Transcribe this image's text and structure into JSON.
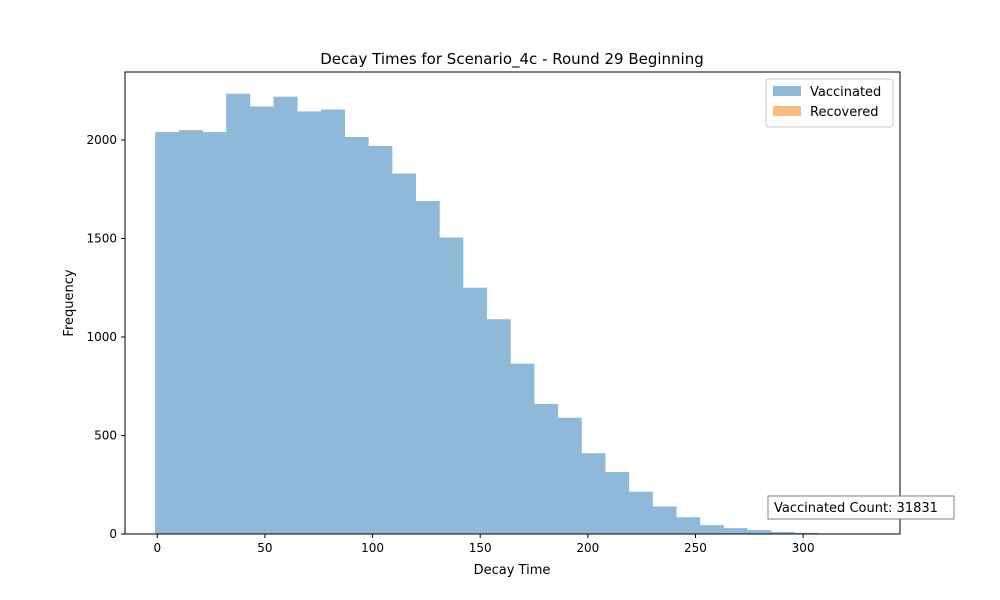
{
  "chart_data": {
    "type": "bar",
    "title": "Decay Times for Scenario_4c - Round 29 Beginning",
    "xlabel": "Decay Time",
    "ylabel": "Frequency",
    "xlim": [
      -15,
      345
    ],
    "ylim": [
      0,
      2345
    ],
    "xticks": [
      0,
      50,
      100,
      150,
      200,
      250,
      300
    ],
    "yticks": [
      0,
      500,
      1000,
      1500,
      2000
    ],
    "bin_width": 11,
    "series": [
      {
        "name": "Vaccinated",
        "color": "#8fb9d9",
        "bins": [
          [
            -1,
            2040
          ],
          [
            10,
            2050
          ],
          [
            21,
            2040
          ],
          [
            32,
            2235
          ],
          [
            43,
            2170
          ],
          [
            54,
            2220
          ],
          [
            65,
            2145
          ],
          [
            76,
            2155
          ],
          [
            87,
            2015
          ],
          [
            98,
            1970
          ],
          [
            109,
            1830
          ],
          [
            120,
            1690
          ],
          [
            131,
            1505
          ],
          [
            142,
            1250
          ],
          [
            153,
            1090
          ],
          [
            164,
            865
          ],
          [
            175,
            660
          ],
          [
            186,
            590
          ],
          [
            197,
            410
          ],
          [
            208,
            315
          ],
          [
            219,
            215
          ],
          [
            230,
            140
          ],
          [
            241,
            85
          ],
          [
            252,
            45
          ],
          [
            263,
            30
          ],
          [
            274,
            20
          ],
          [
            285,
            10
          ],
          [
            296,
            6
          ],
          [
            307,
            3
          ]
        ]
      },
      {
        "name": "Recovered",
        "color": "#fdbb84",
        "bins": []
      }
    ],
    "legend_position": "top-right",
    "annotation": "Vaccinated Count: 31831"
  }
}
